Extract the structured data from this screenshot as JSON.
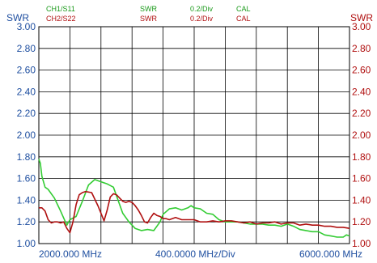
{
  "header": {
    "ch1": {
      "name": "CH1/S11",
      "format": "SWR",
      "scale": "0.2/Div",
      "cal": "CAL"
    },
    "ch2": {
      "name": "CH2/S22",
      "format": "SWR",
      "scale": "0.2/Div",
      "cal": "CAL"
    }
  },
  "axes": {
    "left_label": "SWR",
    "right_label": "SWR"
  },
  "footer": {
    "start": "2000.000 MHz",
    "per_div": "400.0000 MHz/Div",
    "stop": "6000.000 MHz"
  },
  "colors": {
    "ch1_trace": "#33cc33",
    "ch2_trace": "#b01010",
    "left_ticks": "#1f4fa0",
    "right_ticks": "#b01010",
    "grid": "#000000"
  },
  "chart_data": {
    "type": "line",
    "x_unit": "MHz",
    "xlim": [
      2000,
      6000
    ],
    "ylim": [
      1.0,
      3.0
    ],
    "y_ticks": [
      "1.00",
      "1.20",
      "1.40",
      "1.60",
      "1.80",
      "2.00",
      "2.20",
      "2.40",
      "2.60",
      "2.80",
      "3.00"
    ],
    "grid": true,
    "series": [
      {
        "name": "CH1/S11",
        "color": "#33cc33",
        "x": [
          2000,
          2020,
          2040,
          2080,
          2120,
          2200,
          2280,
          2360,
          2400,
          2480,
          2560,
          2640,
          2720,
          2800,
          2880,
          2960,
          3000,
          3080,
          3160,
          3240,
          3320,
          3400,
          3480,
          3560,
          3600,
          3680,
          3760,
          3840,
          3920,
          3960,
          4000,
          4080,
          4160,
          4240,
          4320,
          4400,
          4480,
          4560,
          4640,
          4720,
          4800,
          4880,
          4960,
          5040,
          5120,
          5200,
          5280,
          5360,
          5440,
          5520,
          5600,
          5680,
          5760,
          5840,
          5920,
          5960,
          6000
        ],
        "y": [
          1.78,
          1.74,
          1.62,
          1.52,
          1.5,
          1.42,
          1.3,
          1.17,
          1.22,
          1.25,
          1.39,
          1.54,
          1.59,
          1.57,
          1.55,
          1.52,
          1.44,
          1.28,
          1.2,
          1.14,
          1.12,
          1.13,
          1.12,
          1.2,
          1.27,
          1.32,
          1.33,
          1.31,
          1.33,
          1.35,
          1.33,
          1.32,
          1.28,
          1.27,
          1.22,
          1.2,
          1.2,
          1.2,
          1.19,
          1.18,
          1.18,
          1.18,
          1.17,
          1.17,
          1.16,
          1.18,
          1.16,
          1.13,
          1.12,
          1.11,
          1.11,
          1.08,
          1.07,
          1.06,
          1.06,
          1.08,
          1.07
        ]
      },
      {
        "name": "CH2/S22",
        "color": "#b01010",
        "x": [
          2000,
          2040,
          2080,
          2120,
          2160,
          2200,
          2240,
          2280,
          2320,
          2360,
          2400,
          2440,
          2480,
          2520,
          2560,
          2600,
          2680,
          2760,
          2840,
          2880,
          2920,
          2960,
          3000,
          3040,
          3080,
          3120,
          3160,
          3200,
          3240,
          3280,
          3320,
          3360,
          3400,
          3440,
          3480,
          3520,
          3560,
          3600,
          3640,
          3680,
          3760,
          3840,
          3920,
          4000,
          4080,
          4160,
          4240,
          4320,
          4400,
          4480,
          4560,
          4640,
          4720,
          4800,
          4880,
          4960,
          5040,
          5120,
          5200,
          5280,
          5360,
          5440,
          5520,
          5600,
          5680,
          5760,
          5840,
          5920,
          6000
        ],
        "y": [
          1.33,
          1.33,
          1.3,
          1.22,
          1.19,
          1.2,
          1.2,
          1.19,
          1.2,
          1.14,
          1.1,
          1.2,
          1.36,
          1.45,
          1.47,
          1.48,
          1.47,
          1.35,
          1.21,
          1.31,
          1.43,
          1.46,
          1.45,
          1.42,
          1.39,
          1.38,
          1.39,
          1.38,
          1.35,
          1.31,
          1.26,
          1.2,
          1.19,
          1.24,
          1.28,
          1.26,
          1.25,
          1.23,
          1.23,
          1.22,
          1.24,
          1.22,
          1.22,
          1.22,
          1.2,
          1.2,
          1.21,
          1.2,
          1.21,
          1.21,
          1.2,
          1.19,
          1.2,
          1.18,
          1.19,
          1.19,
          1.2,
          1.18,
          1.19,
          1.19,
          1.17,
          1.18,
          1.17,
          1.17,
          1.16,
          1.16,
          1.15,
          1.15,
          1.14
        ]
      }
    ]
  }
}
